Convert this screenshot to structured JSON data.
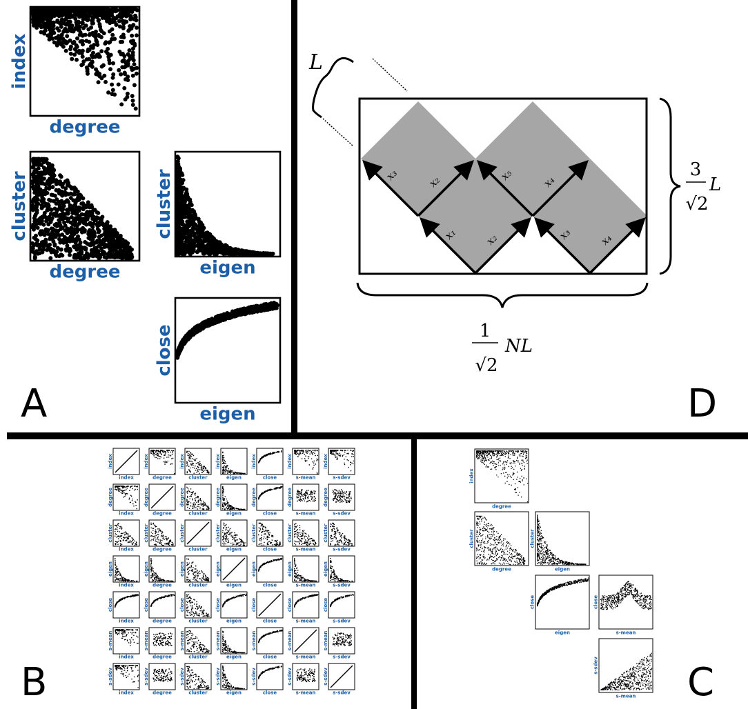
{
  "panels": {
    "A": {
      "letter": "A",
      "plots": [
        {
          "xlabel": "degree",
          "ylabel": "index",
          "shape": "topdense"
        },
        {
          "xlabel": "degree",
          "ylabel": "cluster",
          "shape": "decay"
        },
        {
          "xlabel": "eigen",
          "ylabel": "cluster",
          "shape": "decaysteep"
        },
        {
          "xlabel": "eigen",
          "ylabel": "close",
          "shape": "log"
        }
      ]
    },
    "B": {
      "letter": "B",
      "variables": [
        "index",
        "degree",
        "cluster",
        "eigen",
        "close",
        "s-mean",
        "s-sdev"
      ]
    },
    "C": {
      "letter": "C",
      "plots": [
        {
          "xlabel": "degree",
          "ylabel": "index",
          "shape": "topdense"
        },
        {
          "xlabel": "degree",
          "ylabel": "cluster",
          "shape": "decay"
        },
        {
          "xlabel": "eigen",
          "ylabel": "cluster",
          "shape": "decaysteep"
        },
        {
          "xlabel": "eigen",
          "ylabel": "close",
          "shape": "log"
        },
        {
          "xlabel": "s-mean",
          "ylabel": "close",
          "shape": "hump"
        },
        {
          "xlabel": "s-mean",
          "ylabel": "s-sdev",
          "shape": "rise"
        }
      ]
    },
    "D": {
      "letter": "D",
      "L_label": "L",
      "height_num": "3",
      "height_den": "√2",
      "height_var": "L",
      "width_num": "1",
      "width_den": "√2",
      "width_var": "NL",
      "lower_labels": [
        [
          "x₁",
          "x₂"
        ],
        [
          "x₃",
          "x₄"
        ]
      ],
      "upper_labels": [
        [
          "x₃",
          "x₂"
        ],
        [
          "x₅",
          "x₄"
        ]
      ]
    }
  },
  "colors": {
    "axis_label": "#1c5fa8",
    "diamond_fill": "#a6a6a6",
    "divider": "#000000"
  }
}
